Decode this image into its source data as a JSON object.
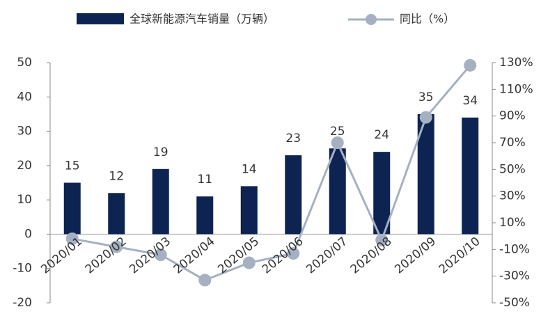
{
  "chart_data": {
    "type": "bar_line",
    "categories": [
      "2020/01",
      "2020/02",
      "2020/03",
      "2020/04",
      "2020/05",
      "2020/06",
      "2020/07",
      "2020/08",
      "2020/09",
      "2020/10"
    ],
    "series": [
      {
        "name": "全球新能源汽车销量（万辆）",
        "color": "#0d2352",
        "type": "bar",
        "values": [
          15,
          12,
          19,
          11,
          14,
          23,
          25,
          24,
          35,
          34
        ]
      },
      {
        "name": "同比（%）",
        "color": "#a5b1c2",
        "type": "line",
        "axis": "y2",
        "values": [
          -2,
          -8,
          -14,
          -33,
          -20,
          -13,
          70,
          -3,
          89,
          128
        ]
      }
    ],
    "ylim": [
      -20,
      50
    ],
    "yticks": [
      -20,
      -10,
      0,
      10,
      20,
      30,
      40,
      50
    ],
    "y2lim": [
      -50,
      130
    ],
    "y2ticks": [
      {
        "value": -50,
        "label": "-50%"
      },
      {
        "value": -30,
        "label": "-30%"
      },
      {
        "value": -10,
        "label": "-10%"
      },
      {
        "value": 10,
        "label": "10%"
      },
      {
        "value": 30,
        "label": "30%"
      },
      {
        "value": 50,
        "label": "50%"
      },
      {
        "value": 70,
        "label": "70%"
      },
      {
        "value": 90,
        "label": "90%"
      },
      {
        "value": 110,
        "label": "110%"
      },
      {
        "value": 130,
        "label": "130%"
      }
    ],
    "legend": "top"
  }
}
